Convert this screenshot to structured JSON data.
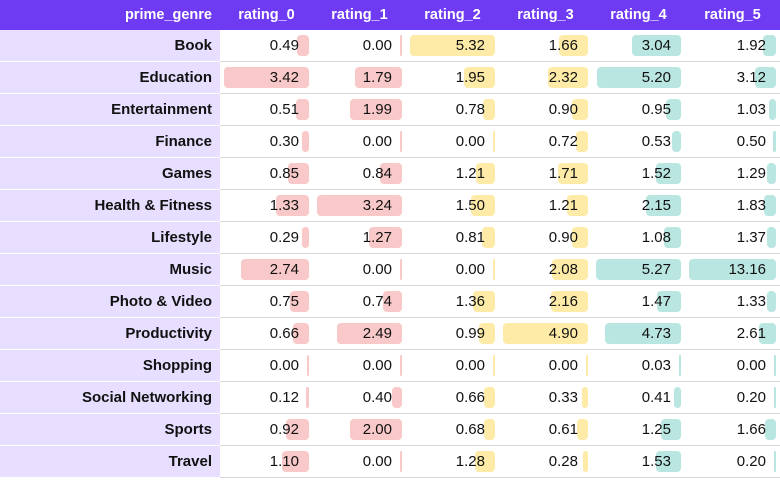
{
  "table": {
    "index_header": "prime_genre",
    "columns": [
      "rating_0",
      "rating_1",
      "rating_2",
      "rating_3",
      "rating_4",
      "rating_5"
    ],
    "rows": [
      {
        "genre": "Book",
        "values": [
          "0.49",
          "0.00",
          "5.32",
          "1.66",
          "3.04",
          "1.92"
        ]
      },
      {
        "genre": "Education",
        "values": [
          "3.42",
          "1.79",
          "1.95",
          "2.32",
          "5.20",
          "3.12"
        ]
      },
      {
        "genre": "Entertainment",
        "values": [
          "0.51",
          "1.99",
          "0.78",
          "0.90",
          "0.95",
          "1.03"
        ]
      },
      {
        "genre": "Finance",
        "values": [
          "0.30",
          "0.00",
          "0.00",
          "0.72",
          "0.53",
          "0.50"
        ]
      },
      {
        "genre": "Games",
        "values": [
          "0.85",
          "0.84",
          "1.21",
          "1.71",
          "1.52",
          "1.29"
        ]
      },
      {
        "genre": "Health & Fitness",
        "values": [
          "1.33",
          "3.24",
          "1.50",
          "1.21",
          "2.15",
          "1.83"
        ]
      },
      {
        "genre": "Lifestyle",
        "values": [
          "0.29",
          "1.27",
          "0.81",
          "0.90",
          "1.08",
          "1.37"
        ]
      },
      {
        "genre": "Music",
        "values": [
          "2.74",
          "0.00",
          "0.00",
          "2.08",
          "5.27",
          "13.16"
        ]
      },
      {
        "genre": "Photo & Video",
        "values": [
          "0.75",
          "0.74",
          "1.36",
          "2.16",
          "1.47",
          "1.33"
        ]
      },
      {
        "genre": "Productivity",
        "values": [
          "0.66",
          "2.49",
          "0.99",
          "4.90",
          "4.73",
          "2.61"
        ]
      },
      {
        "genre": "Shopping",
        "values": [
          "0.00",
          "0.00",
          "0.00",
          "0.00",
          "0.03",
          "0.00"
        ]
      },
      {
        "genre": "Social Networking",
        "values": [
          "0.12",
          "0.40",
          "0.66",
          "0.33",
          "0.41",
          "0.20"
        ]
      },
      {
        "genre": "Sports",
        "values": [
          "0.92",
          "2.00",
          "0.68",
          "0.61",
          "1.25",
          "1.66"
        ]
      },
      {
        "genre": "Travel",
        "values": [
          "1.10",
          "0.00",
          "1.28",
          "0.28",
          "1.53",
          "0.20"
        ]
      }
    ]
  },
  "colors": {
    "header_bg": "#6f3bf2",
    "index_bg": "#e8deff",
    "bar_rating_0_1": "#f9c9c9",
    "bar_rating_2_3": "#fdeba7",
    "bar_rating_4_5": "#b9e6e0"
  }
}
